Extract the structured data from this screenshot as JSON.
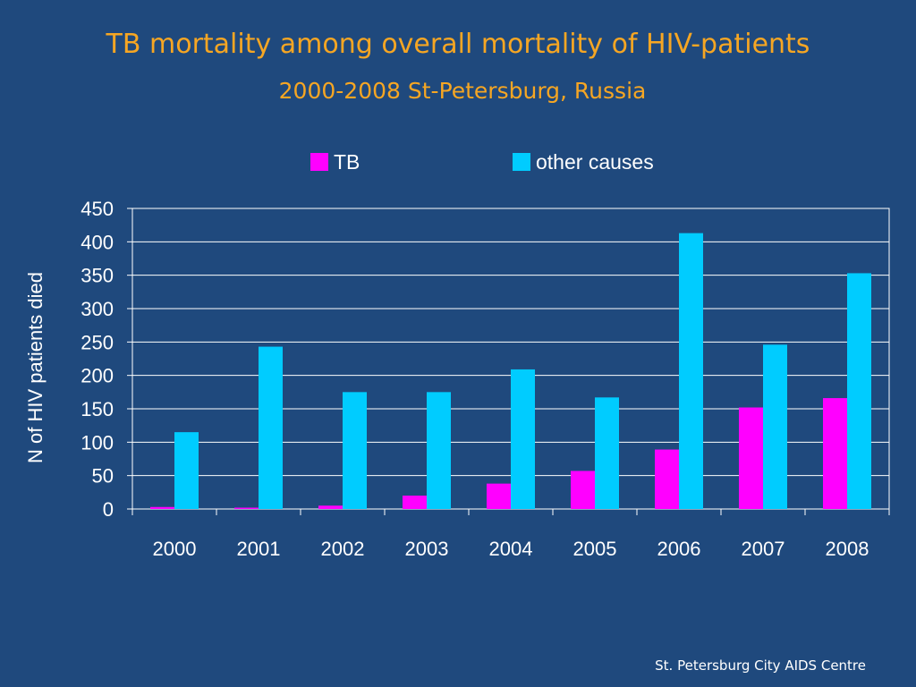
{
  "slide": {
    "title": "TB mortality among overall mortality of HIV-patients",
    "subtitle": "2000-2008 St-Petersburg, Russia",
    "footer": "St. Petersburg City AIDS Centre"
  },
  "colors": {
    "background": "#1f497d",
    "title": "#f6a623",
    "tb": "#ff00ff",
    "other": "#00ccff",
    "text": "#ffffff"
  },
  "chart_data": {
    "type": "bar",
    "title": "",
    "xlabel": "",
    "ylabel": "N of HIV patients died",
    "categories": [
      "2000",
      "2001",
      "2002",
      "2003",
      "2004",
      "2005",
      "2006",
      "2007",
      "2008"
    ],
    "series": [
      {
        "name": "TB",
        "values": [
          3,
          2,
          5,
          20,
          38,
          57,
          89,
          152,
          166
        ]
      },
      {
        "name": "other causes",
        "values": [
          115,
          243,
          175,
          175,
          209,
          167,
          413,
          246,
          353
        ]
      }
    ],
    "ylim": [
      0,
      450
    ],
    "yticks": [
      0,
      50,
      100,
      150,
      200,
      250,
      300,
      350,
      400,
      450
    ],
    "grid": true,
    "legend": "top-center"
  }
}
